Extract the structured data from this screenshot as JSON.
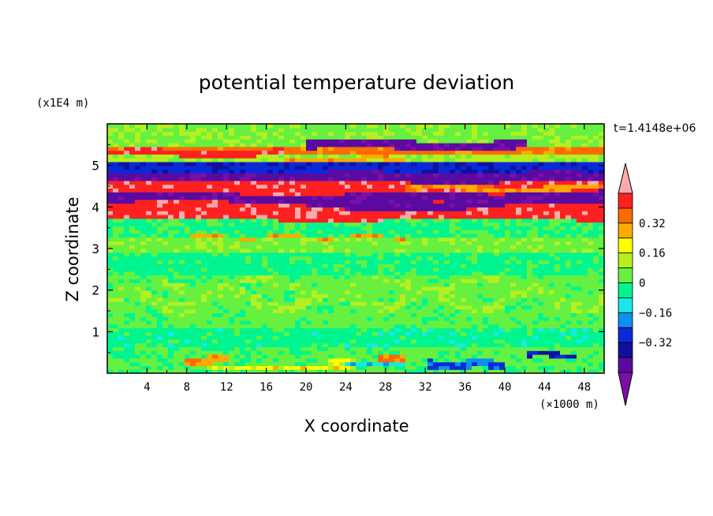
{
  "chart_data": {
    "type": "heatmap",
    "title": "potential temperature deviation",
    "xlabel": "X coordinate",
    "ylabel": "Z coordinate",
    "x_unit": "(×1000 m)",
    "y_unit": "(x1E4 m)",
    "time_label": "t=1.4148e+06",
    "xlim": [
      0,
      50
    ],
    "ylim": [
      0,
      6
    ],
    "x_ticks": [
      "4",
      "8",
      "12",
      "16",
      "20",
      "24",
      "28",
      "32",
      "36",
      "40",
      "44",
      "48"
    ],
    "y_ticks": [
      "1",
      "2",
      "3",
      "4",
      "5"
    ],
    "colorbar": {
      "levels": [
        -0.48,
        -0.4,
        -0.32,
        -0.24,
        -0.16,
        -0.08,
        0,
        0.08,
        0.16,
        0.24,
        0.32,
        0.4,
        0.48
      ],
      "colors": [
        "#7a0fa8",
        "#5a0aa0",
        "#1010a0",
        "#0a2ad8",
        "#0a90f0",
        "#18e8e8",
        "#00f590",
        "#66f040",
        "#b4f020",
        "#ffff00",
        "#ffaa00",
        "#ff6a00",
        "#ff2020",
        "#ffaaaa"
      ],
      "tick_labels": [
        "0.32",
        "0.16",
        "0",
        "−0.16",
        "−0.32"
      ],
      "tick_values": [
        0.32,
        0.16,
        0,
        -0.16,
        -0.32
      ]
    },
    "bands": [
      {
        "z0": 0.0,
        "z1": 0.62,
        "value": 0.02
      },
      {
        "z0": 0.62,
        "z1": 1.1,
        "value": -0.04
      },
      {
        "z0": 1.1,
        "z1": 2.4,
        "value": 0.03
      },
      {
        "z0": 2.4,
        "z1": 2.95,
        "value": -0.03
      },
      {
        "z0": 2.95,
        "z1": 3.3,
        "value": 0.05
      },
      {
        "z0": 3.3,
        "z1": 3.6,
        "value": -0.02
      },
      {
        "z0": 3.6,
        "z1": 3.75,
        "value": 0.0
      },
      {
        "z0": 3.75,
        "z1": 4.05,
        "value": 0.45
      },
      {
        "z0": 4.05,
        "z1": 4.35,
        "value": -0.45
      },
      {
        "z0": 4.35,
        "z1": 4.6,
        "value": 0.45
      },
      {
        "z0": 4.6,
        "z1": 4.85,
        "value": -0.45
      },
      {
        "z0": 4.85,
        "z1": 5.05,
        "value": -0.3
      },
      {
        "z0": 5.05,
        "z1": 5.25,
        "value": 0.1
      },
      {
        "z0": 5.25,
        "z1": 5.5,
        "value": 0.35
      },
      {
        "z0": 5.5,
        "z1": 6.0,
        "value": 0.06
      }
    ],
    "features": [
      {
        "x0": 0,
        "x1": 50,
        "zc": 3.9,
        "amp": 0.15,
        "wl": 30,
        "th": 0.3,
        "value": 0.45
      },
      {
        "x0": 15,
        "x1": 50,
        "zc": 4.15,
        "amp": 0.15,
        "wl": 40,
        "th": 0.22,
        "value": -0.45
      },
      {
        "x0": 0,
        "x1": 40,
        "zc": 4.45,
        "amp": 0.1,
        "wl": 25,
        "th": 0.22,
        "value": 0.45
      },
      {
        "x0": 20,
        "x1": 50,
        "zc": 4.7,
        "amp": 0.1,
        "wl": 20,
        "th": 0.2,
        "value": -0.45
      },
      {
        "x0": 30,
        "x1": 50,
        "zc": 4.45,
        "amp": 0.05,
        "wl": 15,
        "th": 0.15,
        "value": 0.3
      },
      {
        "x0": 20,
        "x1": 42,
        "zc": 5.5,
        "amp": 0.05,
        "wl": 20,
        "th": 0.22,
        "value": -0.45
      },
      {
        "x0": 0,
        "x1": 18,
        "zc": 5.3,
        "amp": 0.05,
        "wl": 15,
        "th": 0.15,
        "value": 0.45
      },
      {
        "x0": 18,
        "x1": 30,
        "zc": 5.15,
        "amp": 0.04,
        "wl": 12,
        "th": 0.1,
        "value": 0.3
      },
      {
        "x0": 0,
        "x1": 50,
        "zc": 5.02,
        "amp": 0.0,
        "wl": 10,
        "th": 0.05,
        "value": -0.48
      },
      {
        "x0": 8,
        "x1": 30,
        "zc": 3.28,
        "amp": 0.03,
        "wl": 8,
        "th": 0.06,
        "value": 0.3
      },
      {
        "x0": 8,
        "x1": 12,
        "zc": 0.3,
        "amp": 0.05,
        "wl": 5,
        "th": 0.2,
        "value": 0.3
      },
      {
        "x0": 27,
        "x1": 30,
        "zc": 0.35,
        "amp": 0.05,
        "wl": 5,
        "th": 0.25,
        "value": 0.35
      },
      {
        "x0": 22,
        "x1": 25,
        "zc": 0.25,
        "amp": 0.0,
        "wl": 5,
        "th": 0.3,
        "value": 0.2
      },
      {
        "x0": 10,
        "x1": 22,
        "zc": 0.1,
        "amp": 0.0,
        "wl": 5,
        "th": 0.1,
        "value": 0.2
      },
      {
        "x0": 32,
        "x1": 40,
        "zc": 0.2,
        "amp": 0.05,
        "wl": 6,
        "th": 0.2,
        "value": -0.25
      },
      {
        "x0": 42,
        "x1": 47,
        "zc": 0.45,
        "amp": 0.05,
        "wl": 6,
        "th": 0.15,
        "value": -0.35
      },
      {
        "x0": 24,
        "x1": 30,
        "zc": 0.2,
        "amp": 0.0,
        "wl": 6,
        "th": 0.12,
        "value": -0.15
      },
      {
        "x0": 0,
        "x1": 50,
        "zc": 1.75,
        "amp": 0.2,
        "wl": 10,
        "th": 0.3,
        "value": 0.07
      },
      {
        "x0": 5,
        "x1": 45,
        "zc": 2.15,
        "amp": 0.15,
        "wl": 12,
        "th": 0.2,
        "value": 0.07
      }
    ]
  }
}
